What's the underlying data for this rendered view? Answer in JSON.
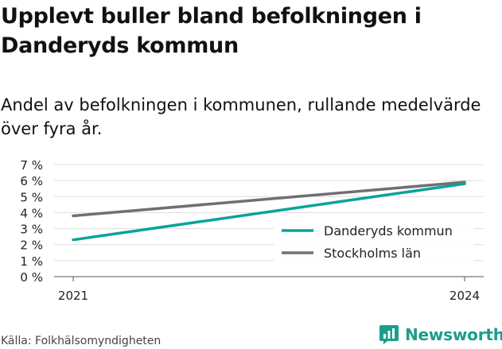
{
  "title": "Upplevt buller bland befolkningen i Danderyds kommun",
  "subtitle": "Andel av befolkningen i kommunen, rullande medelvärde över fyra år.",
  "source": "Källa: Folkhälsomyndigheten",
  "brand": {
    "name": "Newsworthy",
    "icon": "newsworthy-logo-icon",
    "color": "#1b9e8b"
  },
  "chart_data": {
    "type": "line",
    "x": [
      2021,
      2024
    ],
    "series": [
      {
        "name": "Danderyds kommun",
        "values": [
          2.3,
          5.8
        ],
        "color": "#0aa39a"
      },
      {
        "name": "Stockholms län",
        "values": [
          3.8,
          5.9
        ],
        "color": "#707074"
      }
    ],
    "y_ticks": [
      "0 %",
      "1 %",
      "2 %",
      "3 %",
      "4 %",
      "5 %",
      "6 %",
      "7 %"
    ],
    "x_ticks": [
      "2021",
      "2024"
    ],
    "ylim": [
      0,
      7
    ],
    "grid": true,
    "legend_position": "bottom-right"
  }
}
